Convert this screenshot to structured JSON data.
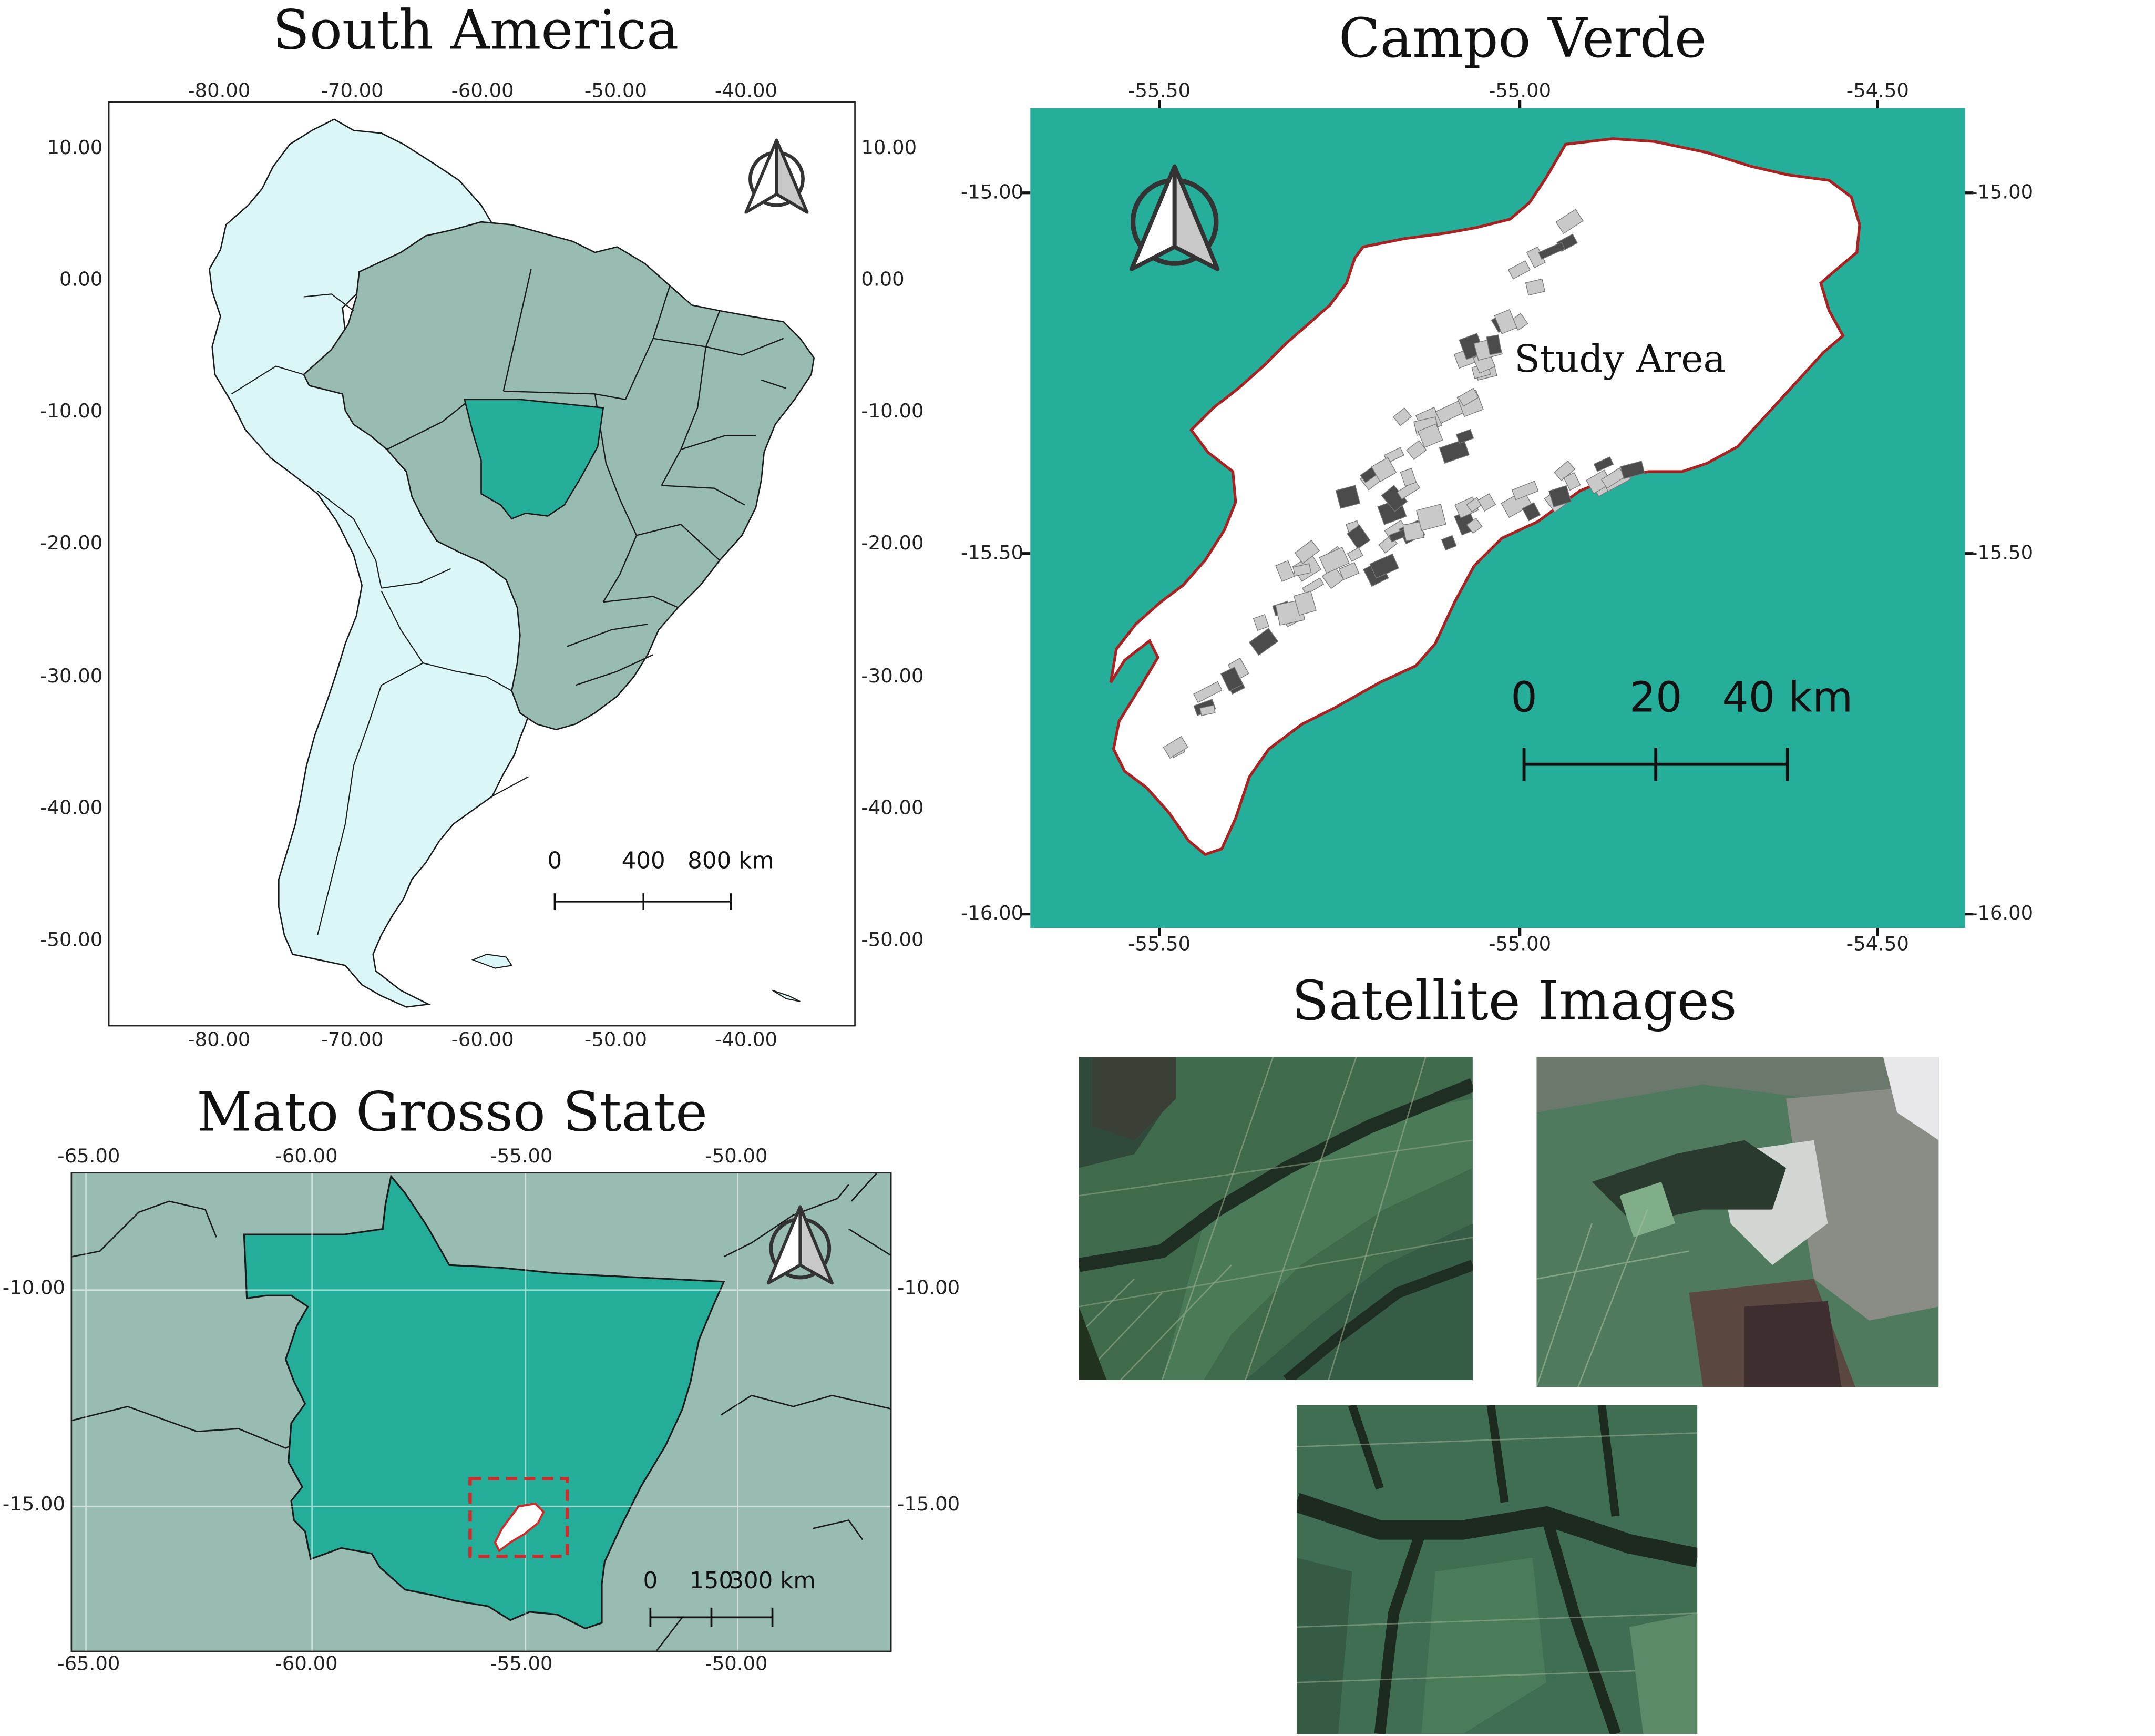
{
  "colors": {
    "ocean": "#25ae9a",
    "brazil_states": "#98bbb2",
    "mato_grosso": "#24ae9a",
    "other_countries": "#dbf6f7",
    "study_area": "#ffffff",
    "boundary_red": "#b41d1d",
    "field_light": "#c9c9c9",
    "field_dark": "#4b4b4b"
  },
  "panels": {
    "south_america": {
      "title": "South America",
      "top_ticks": [
        "-80.00",
        "-70.00",
        "-60.00",
        "-50.00",
        "-40.00"
      ],
      "bottom_ticks": [
        "-80.00",
        "-70.00",
        "-60.00",
        "-50.00",
        "-40.00"
      ],
      "left_ticks": [
        "10.00",
        "0.00",
        "-10.00",
        "-20.00",
        "-30.00",
        "-40.00",
        "-50.00"
      ],
      "right_ticks": [
        "10.00",
        "0.00",
        "-10.00",
        "-20.00",
        "-30.00",
        "-40.00",
        "-50.00"
      ],
      "scale": {
        "labels": [
          "0",
          "400",
          "800 km"
        ]
      },
      "north_arrow_icon": "north-arrow-icon"
    },
    "campo_verde": {
      "title": "Campo Verde",
      "top_ticks": [
        "-55.50",
        "-55.00",
        "-54.50"
      ],
      "bottom_ticks": [
        "-55.50",
        "-55.00",
        "-54.50"
      ],
      "left_ticks": [
        "-15.00",
        "-15.50",
        "-16.00"
      ],
      "right_ticks": [
        "-15.00",
        "-15.50",
        "-16.00"
      ],
      "study_area_label": "Study Area",
      "scale": {
        "labels": [
          "0",
          "20",
          "40 km"
        ]
      },
      "north_arrow_icon": "north-arrow-icon"
    },
    "mato_grosso": {
      "title": "Mato Grosso State",
      "top_ticks": [
        "-65.00",
        "-60.00",
        "-55.00",
        "-50.00"
      ],
      "bottom_ticks": [
        "-65.00",
        "-60.00",
        "-55.00",
        "-50.00"
      ],
      "left_ticks": [
        "-10.00",
        "-15.00"
      ],
      "right_ticks": [
        "-10.00",
        "-15.00"
      ],
      "scale": {
        "labels": [
          "0",
          "150",
          "300 km"
        ]
      },
      "north_arrow_icon": "north-arrow-icon"
    },
    "satellite": {
      "title": "Satellite Images",
      "images": [
        "satellite-image-1",
        "satellite-image-2",
        "satellite-image-3"
      ]
    }
  }
}
